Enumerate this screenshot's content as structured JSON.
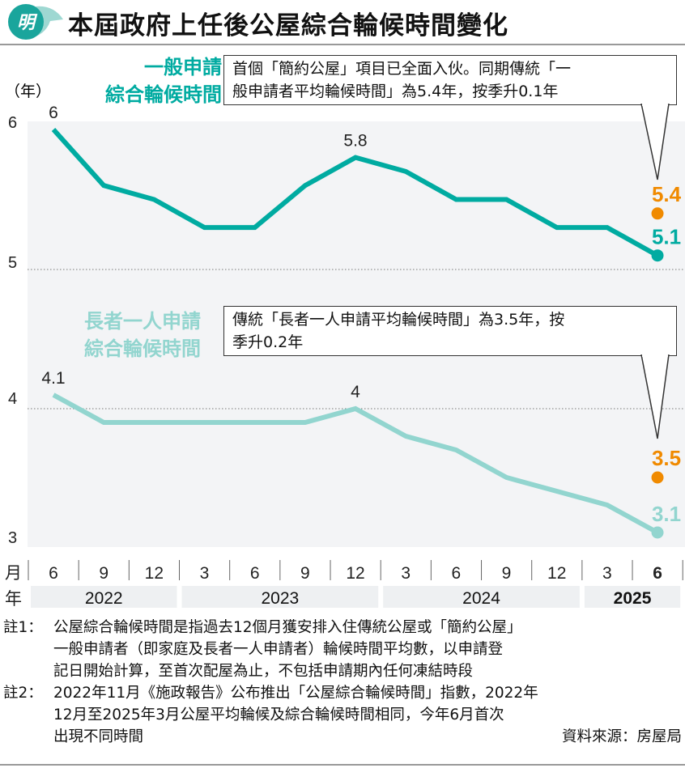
{
  "header": {
    "logo_text": "明",
    "title": "本屆政府上任後公屋綜合輪候時間變化"
  },
  "series_labels": {
    "general": [
      "一般申請",
      "綜合輪候時間"
    ],
    "elderly": [
      "長者一人申請",
      "綜合輪候時間"
    ]
  },
  "callouts": {
    "general": [
      "首個「簡約公屋」項目已全面入伙。同期傳統「一",
      "般申請者平均輪候時間」為5.4年，按季升0.1年"
    ],
    "elderly": [
      "傳統「長者一人申請平均輪候時間」為3.5年，按",
      "季升0.2年"
    ]
  },
  "axis": {
    "y_unit": "（年）",
    "month_label": "月",
    "year_label": "年"
  },
  "colors": {
    "general": "#00aba1",
    "elderly": "#92d5cf",
    "traditional": "#f08a00",
    "panel": "#f3f4f6",
    "year_band": "#eef0f2"
  },
  "chart_data": {
    "type": "line",
    "x": [
      "6",
      "9",
      "12",
      "3",
      "6",
      "9",
      "12",
      "3",
      "6",
      "9",
      "12",
      "3",
      "6"
    ],
    "years": [
      {
        "label": "2022",
        "span": 3
      },
      {
        "label": "2023",
        "span": 4
      },
      {
        "label": "2024",
        "span": 4
      },
      {
        "label": "2025",
        "span": 2,
        "bold": true
      }
    ],
    "upper": {
      "ylim": [
        5,
        6
      ],
      "yticks": [
        "5",
        "6"
      ],
      "series": [
        {
          "name": "一般申請綜合輪候時間",
          "values": [
            6,
            5.6,
            5.5,
            5.3,
            5.3,
            5.6,
            5.8,
            5.7,
            5.5,
            5.5,
            5.3,
            5.3,
            5.1
          ],
          "labels": {
            "0": "6",
            "6": "5.8",
            "12": "5.1"
          }
        }
      ],
      "extra_point": {
        "name": "傳統一般申請者平均輪候時間",
        "index": 12,
        "value": 5.4,
        "label": "5.4"
      }
    },
    "lower": {
      "ylim": [
        3,
        4
      ],
      "yticks": [
        "3",
        "4"
      ],
      "series": [
        {
          "name": "長者一人申請綜合輪候時間",
          "values": [
            4.1,
            3.9,
            3.9,
            3.9,
            3.9,
            3.9,
            4.0,
            3.8,
            3.7,
            3.5,
            3.4,
            3.3,
            3.1
          ],
          "labels": {
            "0": "4.1",
            "6": "4",
            "12": "3.1"
          }
        }
      ],
      "extra_point": {
        "name": "傳統長者一人申請平均輪候時間",
        "index": 12,
        "value": 3.5,
        "label": "3.5"
      }
    }
  },
  "footnotes": [
    {
      "label": "註1：",
      "lines": [
        "公屋綜合輪候時間是指過去12個月獲安排入住傳統公屋或「簡約公屋」",
        "一般申請者（即家庭及長者一人申請者）輪候時間平均數，以申請登",
        "記日開始計算，至首次配屋為止，不包括申請期內任何凍結時段"
      ]
    },
    {
      "label": "註2：",
      "lines": [
        "2022年11月《施政報告》公布推出「公屋綜合輪候時間」指數，2022年",
        "12月至2025年3月公屋平均輪候及綜合輪候時間相同，今年6月首次",
        "出現不同時間"
      ]
    }
  ],
  "source": "資料來源：房屋局"
}
